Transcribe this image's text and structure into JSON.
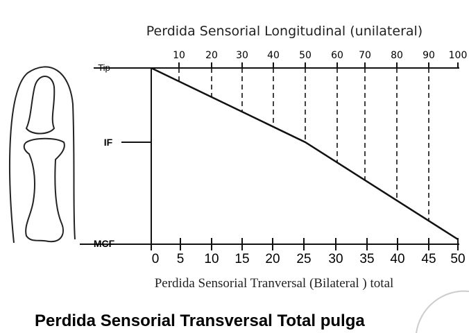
{
  "title": "Perdida Sensorial Longitudinal (unilateral)",
  "top_scale": [
    10,
    20,
    30,
    40,
    50,
    60,
    70,
    80,
    90,
    100
  ],
  "bottom_scale": [
    0,
    5,
    10,
    15,
    20,
    25,
    30,
    35,
    40,
    45,
    50
  ],
  "levels": [
    "Tip",
    "IF",
    "MCF"
  ],
  "caption": "Perdida Sensorial Tranversal (Bilateral ) total",
  "heading": "Perdida Sensorial Transversal Total pulga"
}
